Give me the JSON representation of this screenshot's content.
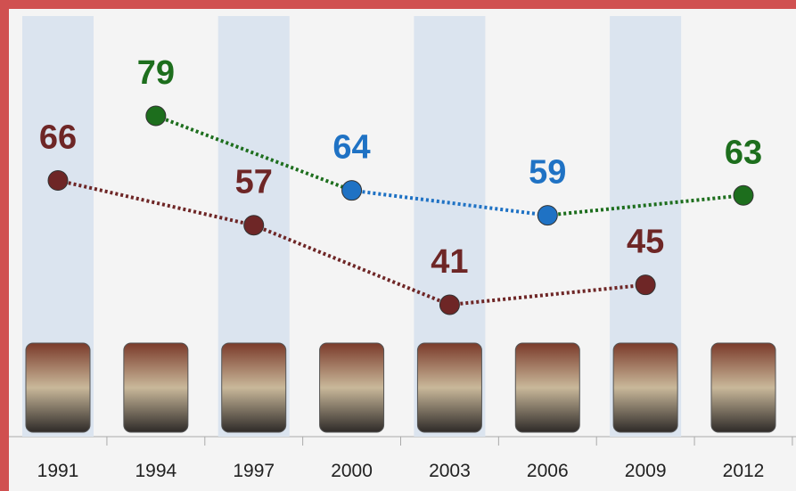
{
  "chart_data": {
    "type": "line",
    "xticks": [
      1991,
      1994,
      1997,
      2000,
      2003,
      2006,
      2009,
      2012
    ],
    "series": [
      {
        "x": [
          1991,
          1997,
          2003,
          2009
        ],
        "values": [
          66,
          57,
          41,
          45
        ],
        "color": "#6e2626",
        "point_colors": [
          "#6e2626",
          "#6e2626",
          "#6e2626",
          "#6e2626"
        ],
        "segment_colors": [
          "#6e2626",
          "#6e2626",
          "#6e2626"
        ]
      },
      {
        "x": [
          1994,
          2000,
          2006,
          2012
        ],
        "values": [
          79,
          64,
          59,
          63
        ],
        "color": "#1d6e1d",
        "point_colors": [
          "#1d6e1d",
          "#1f72c4",
          "#1f72c4",
          "#1d6e1d"
        ],
        "segment_colors": [
          "#1d6e1d",
          "#1f72c4",
          "#1d6e1d"
        ]
      }
    ]
  }
}
